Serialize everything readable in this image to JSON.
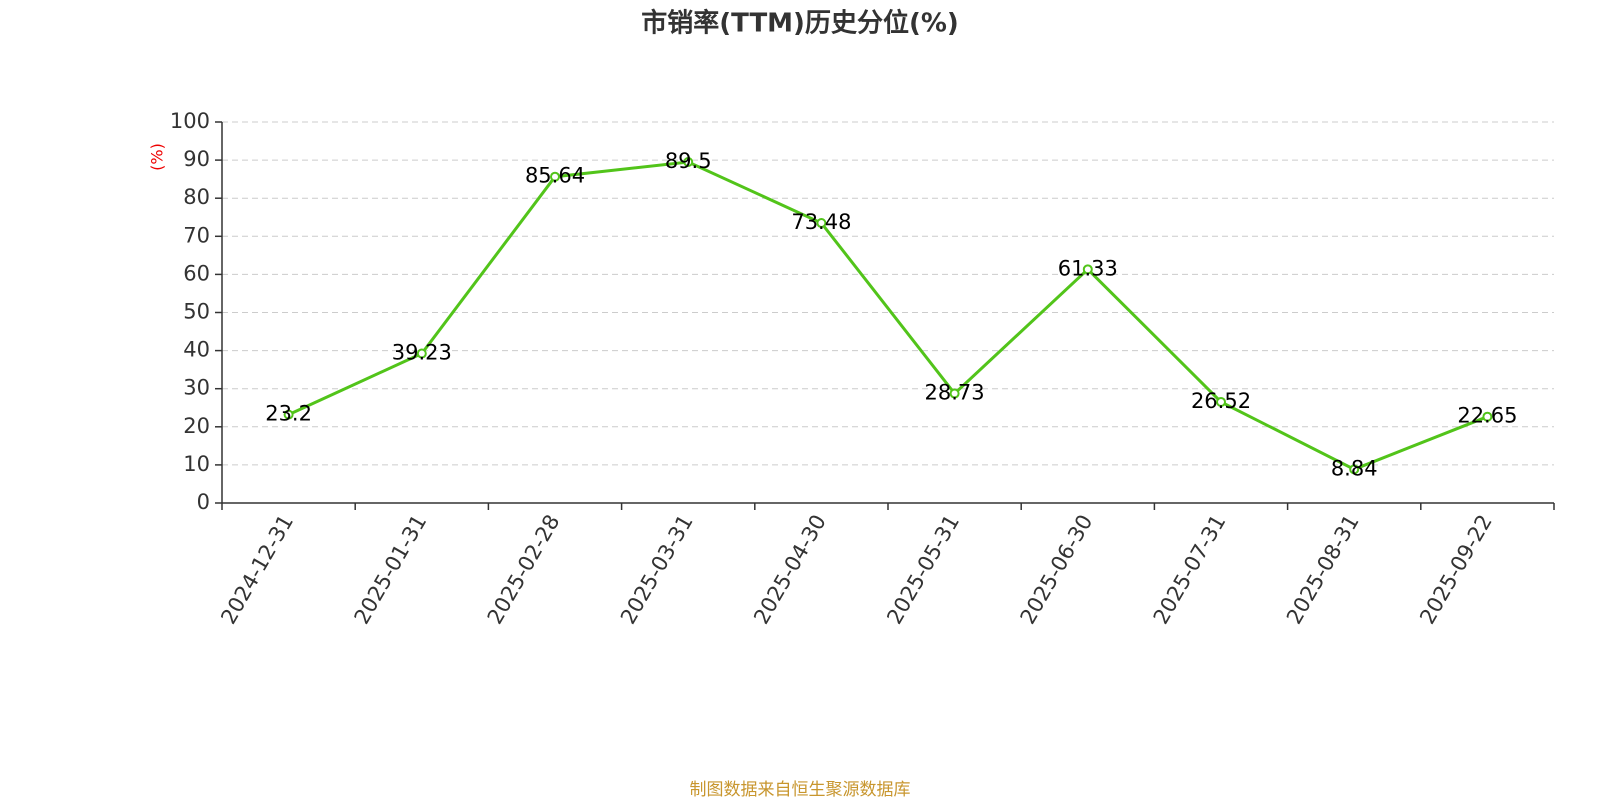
{
  "chart_data": {
    "type": "line",
    "title": "市销率(TTM)历史分位(%)",
    "y_label": "(%)",
    "footer": "制图数据来自恒生聚源数据库",
    "categories": [
      "2024-12-31",
      "2025-01-31",
      "2025-02-28",
      "2025-03-31",
      "2025-04-30",
      "2025-05-31",
      "2025-06-30",
      "2025-07-31",
      "2025-08-31",
      "2025-09-22"
    ],
    "values": [
      23.2,
      39.23,
      85.64,
      89.5,
      73.48,
      28.73,
      61.33,
      26.52,
      8.84,
      22.65
    ],
    "color": "#52c41a",
    "ylim": [
      0,
      100
    ],
    "yticks": [
      0,
      10,
      20,
      30,
      40,
      50,
      60,
      70,
      80,
      90,
      100
    ],
    "grid": true
  }
}
